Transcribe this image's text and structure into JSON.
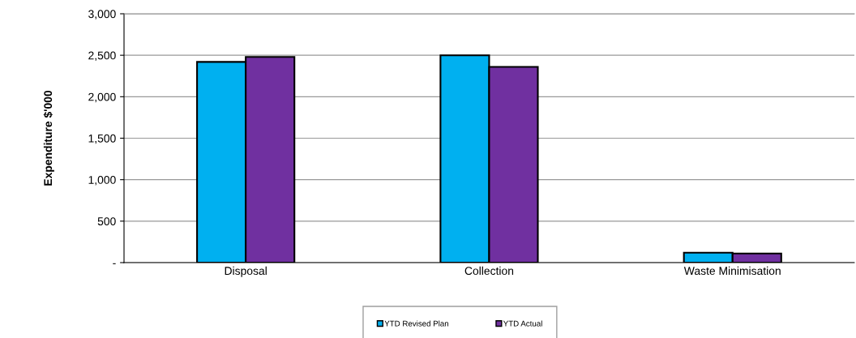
{
  "chart_data": {
    "type": "bar",
    "ylabel": "Expenditure $'000",
    "categories": [
      "Disposal",
      "Collection",
      "Waste Minimisation"
    ],
    "series": [
      {
        "name": "YTD Revised Plan",
        "color": "#00b0f0",
        "values": [
          2420,
          2500,
          120
        ]
      },
      {
        "name": "YTD Actual",
        "color": "#7030a0",
        "values": [
          2480,
          2360,
          110
        ]
      }
    ],
    "ylim": [
      0,
      3000
    ],
    "yticks": [
      {
        "value": 0,
        "label": "-"
      },
      {
        "value": 500,
        "label": "500"
      },
      {
        "value": 1000,
        "label": "1,000"
      },
      {
        "value": 1500,
        "label": "1,500"
      },
      {
        "value": 2000,
        "label": "2,000"
      },
      {
        "value": 2500,
        "label": "2,500"
      },
      {
        "value": 3000,
        "label": "3,000"
      }
    ],
    "grid": "y",
    "legend": "bottom"
  }
}
